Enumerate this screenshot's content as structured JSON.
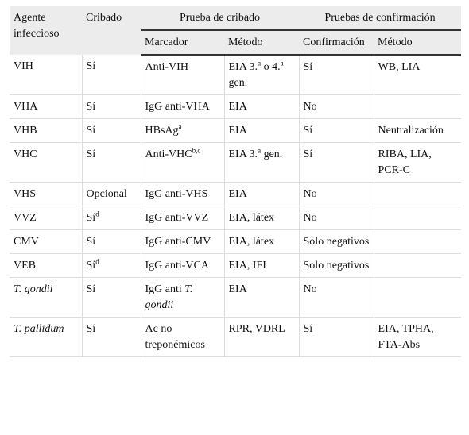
{
  "table": {
    "header": {
      "top": [
        "Agente infeccioso",
        "Cribado",
        "Prueba de cribado",
        "Pruebas de confirmación"
      ],
      "sub": [
        "Marcador",
        "Método",
        "Confirmación",
        "Método"
      ]
    },
    "rows": [
      [
        "VIH",
        "Sí",
        "Anti-VIH",
        [
          "EIA 3.",
          {
            "text": "a",
            "style": "sup"
          },
          " o 4.",
          {
            "text": "a",
            "style": "sup"
          },
          " gen."
        ],
        "Sí",
        "WB, LIA"
      ],
      [
        "VHA",
        "Sí",
        "IgG anti-VHA",
        "EIA",
        "No",
        ""
      ],
      [
        "VHB",
        "Sí",
        [
          "HBsAg",
          {
            "text": "a",
            "style": "sup"
          }
        ],
        "EIA",
        "Sí",
        "Neutralización"
      ],
      [
        "VHC",
        "Sí",
        [
          "Anti-VHC",
          {
            "text": "b,c",
            "style": "sup"
          }
        ],
        [
          "EIA 3.",
          {
            "text": "a",
            "style": "sup"
          },
          " gen."
        ],
        "Sí",
        "RIBA, LIA, PCR-C"
      ],
      [
        "VHS",
        "Opcional",
        "IgG anti-VHS",
        "EIA",
        "No",
        ""
      ],
      [
        "VVZ",
        [
          "Sí",
          {
            "text": "d",
            "style": "sup"
          }
        ],
        "IgG anti-VVZ",
        "EIA, látex",
        "No",
        ""
      ],
      [
        "CMV",
        "Sí",
        "IgG anti-CMV",
        "EIA, látex",
        "Solo negativos",
        ""
      ],
      [
        "VEB",
        [
          "Sí",
          {
            "text": "d",
            "style": "sup"
          }
        ],
        "IgG anti-VCA",
        "EIA, IFI",
        "Solo negativos",
        ""
      ],
      [
        [
          {
            "text": "T. gondii",
            "style": "italic"
          }
        ],
        "Sí",
        [
          "IgG anti ",
          {
            "text": "T. gondii",
            "style": "italic"
          }
        ],
        "EIA",
        "No",
        ""
      ],
      [
        [
          {
            "text": "T. pallidum",
            "style": "italic"
          }
        ],
        "Sí",
        "Ac no treponémicos",
        "RPR, VDRL",
        "Sí",
        "EIA, TPHA, FTA-Abs"
      ]
    ]
  }
}
